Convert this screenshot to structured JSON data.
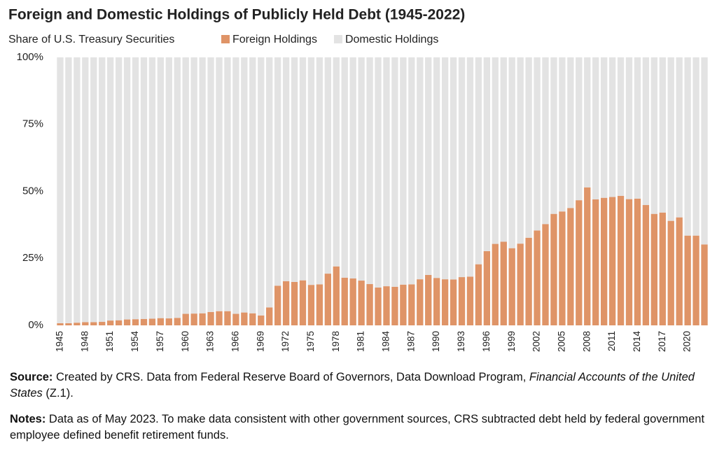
{
  "chart_data": {
    "type": "stacked_bar",
    "title": "Foreign and Domestic Holdings of Publicly Held Debt (1945-2022)",
    "y_axis_label": "Share of U.S. Treasury Securities",
    "categories": [
      "1945",
      null,
      null,
      "1948",
      null,
      null,
      "1951",
      null,
      null,
      "1954",
      null,
      null,
      "1957",
      null,
      null,
      "1960",
      null,
      null,
      "1963",
      null,
      null,
      "1966",
      null,
      null,
      "1969",
      null,
      null,
      "1972",
      null,
      null,
      "1975",
      null,
      null,
      "1978",
      null,
      null,
      "1981",
      null,
      null,
      "1984",
      null,
      null,
      "1987",
      null,
      null,
      "1990",
      null,
      null,
      "1993",
      null,
      null,
      "1996",
      null,
      null,
      "1999",
      null,
      null,
      "2002",
      null,
      null,
      "2005",
      null,
      null,
      "2008",
      null,
      null,
      "2011",
      null,
      null,
      "2014",
      null,
      null,
      "2017",
      null,
      null,
      "2020",
      null,
      null
    ],
    "series": [
      {
        "name": "Foreign Holdings",
        "color": "#df9467",
        "values": [
          0.8,
          0.8,
          1.0,
          1.2,
          1.2,
          1.3,
          1.8,
          1.9,
          2.2,
          2.3,
          2.4,
          2.5,
          2.7,
          2.6,
          2.8,
          4.3,
          4.4,
          4.5,
          5.0,
          5.3,
          5.3,
          4.3,
          4.8,
          4.5,
          3.7,
          6.7,
          14.8,
          16.5,
          16.2,
          16.8,
          15.1,
          15.3,
          19.3,
          22.0,
          17.8,
          17.5,
          16.7,
          15.4,
          14.1,
          14.6,
          14.4,
          15.2,
          15.3,
          17.2,
          18.8,
          17.7,
          17.2,
          17.1,
          18.0,
          18.2,
          22.8,
          27.7,
          30.4,
          31.2,
          28.8,
          30.5,
          32.7,
          35.4,
          37.8,
          41.6,
          42.5,
          43.8,
          46.7,
          51.5,
          47.0,
          47.6,
          47.9,
          48.3,
          47.1,
          47.3,
          44.9,
          41.6,
          42.1,
          39.0,
          40.3,
          33.5,
          33.5,
          30.2
        ]
      },
      {
        "name": "Domestic Holdings",
        "color": "#e3e3e3",
        "values": [
          99.2,
          99.2,
          99.0,
          98.8,
          98.8,
          98.7,
          98.2,
          98.1,
          97.8,
          97.7,
          97.6,
          97.5,
          97.3,
          97.4,
          97.2,
          95.7,
          95.6,
          95.5,
          95.0,
          94.7,
          94.7,
          95.7,
          95.2,
          95.5,
          96.3,
          93.3,
          85.2,
          83.5,
          83.8,
          83.2,
          84.9,
          84.7,
          80.7,
          78.0,
          82.2,
          82.5,
          83.3,
          84.6,
          85.9,
          85.4,
          85.6,
          84.8,
          84.7,
          82.8,
          81.2,
          82.3,
          82.8,
          82.9,
          82.0,
          81.8,
          77.2,
          72.3,
          69.6,
          68.8,
          71.2,
          69.5,
          67.3,
          64.6,
          62.2,
          58.4,
          57.5,
          56.2,
          53.3,
          48.5,
          53.0,
          52.4,
          52.1,
          51.7,
          52.9,
          52.7,
          55.1,
          58.4,
          57.9,
          61.0,
          59.7,
          66.5,
          66.5,
          69.8
        ]
      }
    ],
    "ylim": [
      0,
      100
    ],
    "yticks": [
      {
        "value": 0,
        "label": "0%"
      },
      {
        "value": 25,
        "label": "25%"
      },
      {
        "value": 50,
        "label": "50%"
      },
      {
        "value": 75,
        "label": "75%"
      },
      {
        "value": 100,
        "label": "100%"
      }
    ],
    "legend": "top",
    "source": {
      "label": "Source:",
      "parts": [
        " Created by CRS. Data from Federal Reserve Board of Governors, Data Download Program, ",
        "Financial Accounts of the United States",
        " (Z.1)."
      ]
    },
    "notes": {
      "label": "Notes:",
      "text": " Data as of May 2023. To make data consistent with other government sources, CRS subtracted debt held by federal government employee defined benefit retirement funds."
    }
  }
}
